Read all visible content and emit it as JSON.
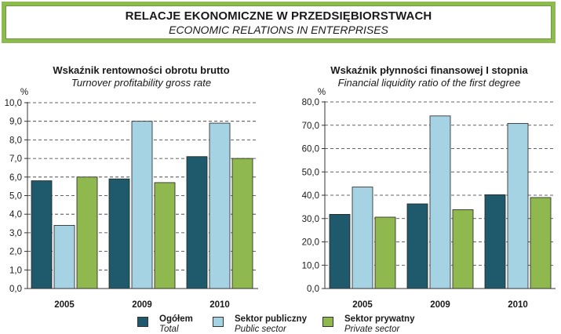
{
  "header": {
    "title": "RELACJE EKONOMICZNE W PRZEDSIĘBIORSTWACH",
    "subtitle": "ECONOMIC RELATIONS IN ENTERPRISES"
  },
  "colors": {
    "banner": "#8dbb50",
    "ogolem": "#1e5a6b",
    "publiczny": "#a6d3e4",
    "prywatny": "#8fb84f"
  },
  "legend": [
    {
      "label_pl": "Ogółem",
      "label_en": "Total",
      "color": "#1e5a6b"
    },
    {
      "label_pl": "Sektor publiczny",
      "label_en": "Public sector",
      "color": "#a6d3e4"
    },
    {
      "label_pl": "Sektor prywatny",
      "label_en": "Private sector",
      "color": "#8fb84f"
    }
  ],
  "chart_data": [
    {
      "type": "bar",
      "title": "Wskaźnik rentowności obrotu brutto",
      "subtitle": "Turnover profitability gross rate",
      "ylabel": "%",
      "categories": [
        "2005",
        "2009",
        "2010"
      ],
      "ylim": [
        0,
        10
      ],
      "yticks": [
        "0,0",
        "1,0",
        "2,0",
        "3,0",
        "4,0",
        "5,0",
        "6,0",
        "7,0",
        "8,0",
        "9,0",
        "10,0"
      ],
      "grid": true,
      "series": [
        {
          "name": "Ogółem",
          "values": [
            5.8,
            5.9,
            7.1
          ]
        },
        {
          "name": "Sektor publiczny",
          "values": [
            3.4,
            9.0,
            8.9
          ]
        },
        {
          "name": "Sektor prywatny",
          "values": [
            6.0,
            5.7,
            7.0
          ]
        }
      ]
    },
    {
      "type": "bar",
      "title": "Wskaźnik płynności finansowej I stopnia",
      "subtitle": "Financial liquidity ratio of the first degree",
      "ylabel": "%",
      "categories": [
        "2005",
        "2009",
        "2010"
      ],
      "ylim": [
        0,
        80
      ],
      "yticks": [
        "0,0",
        "10,0",
        "20,0",
        "30,0",
        "40,0",
        "50,0",
        "60,0",
        "70,0",
        "80,0"
      ],
      "grid": true,
      "series": [
        {
          "name": "Ogółem",
          "values": [
            31.8,
            36.3,
            40.2
          ]
        },
        {
          "name": "Sektor publiczny",
          "values": [
            43.5,
            74.0,
            70.8
          ]
        },
        {
          "name": "Sektor prywatny",
          "values": [
            30.6,
            33.8,
            39.0
          ]
        }
      ]
    }
  ]
}
